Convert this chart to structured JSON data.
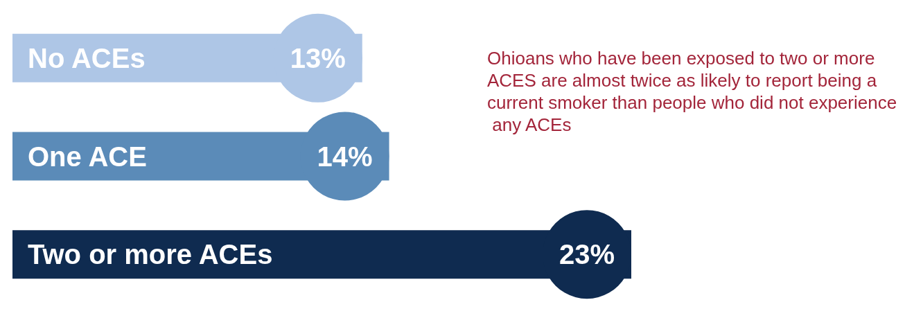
{
  "chart_data": {
    "type": "bar",
    "orientation": "horizontal",
    "categories": [
      "No ACEs",
      "One ACE",
      "Two or more ACEs"
    ],
    "values": [
      13,
      14,
      23
    ],
    "value_labels": [
      "13%",
      "14%",
      "23%"
    ],
    "colors": [
      "#aec6e6",
      "#5b8bb8",
      "#0f2b50"
    ],
    "annotations": [
      "Ohioans who have been exposed to two or more ACES are almost twice as likely to report being a current smoker than people who did not experience any ACEs"
    ]
  }
}
